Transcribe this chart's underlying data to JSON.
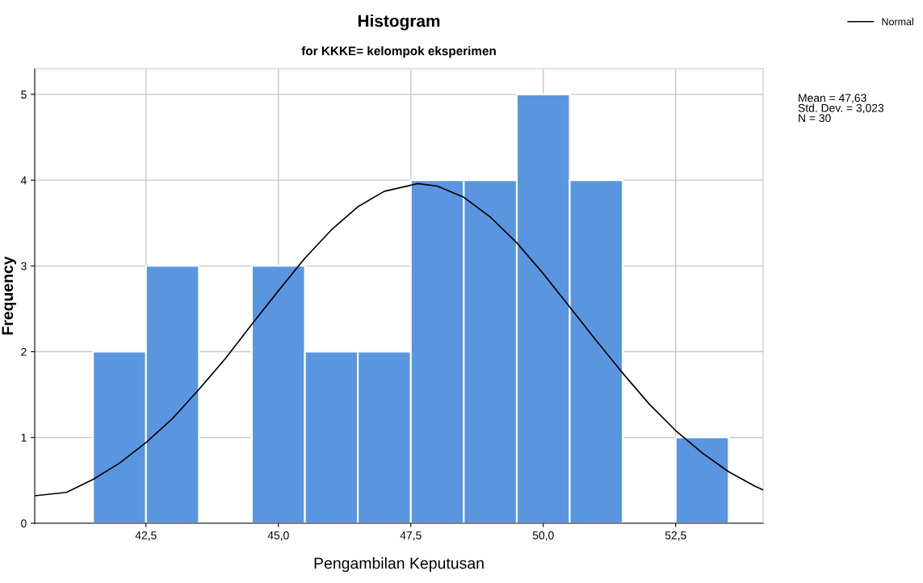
{
  "chart_data": {
    "type": "histogram",
    "title": "Histogram",
    "subtitle": "for KKKE= kelompok eksperimen",
    "xlabel": "Pengambilan Keputusan",
    "ylabel": "Frequency",
    "bins": [
      41.5,
      42.5,
      43.5,
      44.5,
      45.5,
      46.5,
      47.5,
      48.5,
      49.5,
      50.5,
      51.5,
      52.5,
      53.5
    ],
    "values": [
      2,
      3,
      0,
      3,
      2,
      2,
      4,
      4,
      5,
      4,
      0,
      1
    ],
    "color": "#5a96e0",
    "series": [
      {
        "name": "Normal",
        "type": "line",
        "color": "#000000",
        "x": [
          40.4,
          41,
          41.5,
          42,
          42.5,
          43,
          43.5,
          44,
          44.5,
          45,
          45.5,
          46,
          46.5,
          47,
          47.63,
          48,
          48.5,
          49,
          49.5,
          50,
          50.5,
          51,
          51.5,
          52,
          52.5,
          53,
          53.5,
          54,
          54.15
        ],
        "values": [
          0.32,
          0.36,
          0.51,
          0.7,
          0.94,
          1.22,
          1.56,
          1.92,
          2.32,
          2.71,
          3.09,
          3.42,
          3.69,
          3.87,
          3.96,
          3.93,
          3.8,
          3.57,
          3.27,
          2.91,
          2.52,
          2.13,
          1.75,
          1.39,
          1.08,
          0.82,
          0.6,
          0.43,
          0.39
        ]
      }
    ],
    "xlim": [
      40.4,
      54.15
    ],
    "ylim": [
      0,
      5.3
    ],
    "xticks": [
      {
        "value": 42.5,
        "label": "42,5"
      },
      {
        "value": 45.0,
        "label": "45,0"
      },
      {
        "value": 47.5,
        "label": "47,5"
      },
      {
        "value": 50.0,
        "label": "50,0"
      },
      {
        "value": 52.5,
        "label": "52,5"
      }
    ],
    "yticks": [
      0,
      1,
      2,
      3,
      4,
      5
    ],
    "grid": true,
    "legend": "top right",
    "annotations": [
      "Mean = 47,63\nStd. Dev. = 3,023\nN = 30"
    ]
  }
}
